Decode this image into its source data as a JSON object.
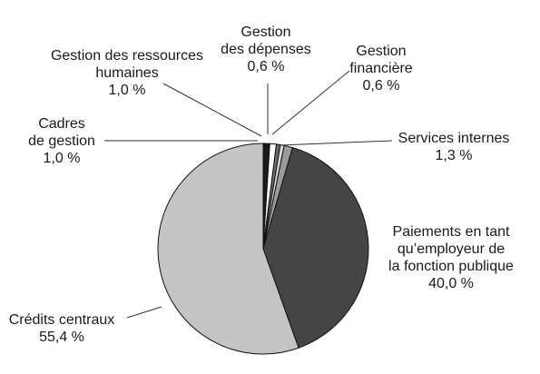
{
  "chart_data": {
    "type": "pie",
    "title": "",
    "slices": [
      {
        "lines": [
          "Cadres",
          "de gestion"
        ],
        "pct_label": "1,0 %",
        "value": 1.0,
        "color": "#1a1a1a"
      },
      {
        "lines": [
          "Gestion des ressources",
          "humaines"
        ],
        "pct_label": "1,0 %",
        "value": 1.0,
        "color": "#ffffff"
      },
      {
        "lines": [
          "Gestion",
          "des dépenses"
        ],
        "pct_label": "0,6 %",
        "value": 0.6,
        "color": "#6b6b6b"
      },
      {
        "lines": [
          "Gestion",
          "financière"
        ],
        "pct_label": "0,6 %",
        "value": 0.6,
        "color": "#d8d8d8"
      },
      {
        "lines": [
          "Services internes"
        ],
        "pct_label": "1,3 %",
        "value": 1.3,
        "color": "#9a9a9a"
      },
      {
        "lines": [
          "Paiements en tant",
          "qu’employeur de",
          "la fonction publique"
        ],
        "pct_label": "40,0 %",
        "value": 40.0,
        "color": "#454545"
      },
      {
        "lines": [
          "Crédits centraux"
        ],
        "pct_label": "55,4 %",
        "value": 55.4,
        "color": "#c4c4c4"
      }
    ]
  }
}
